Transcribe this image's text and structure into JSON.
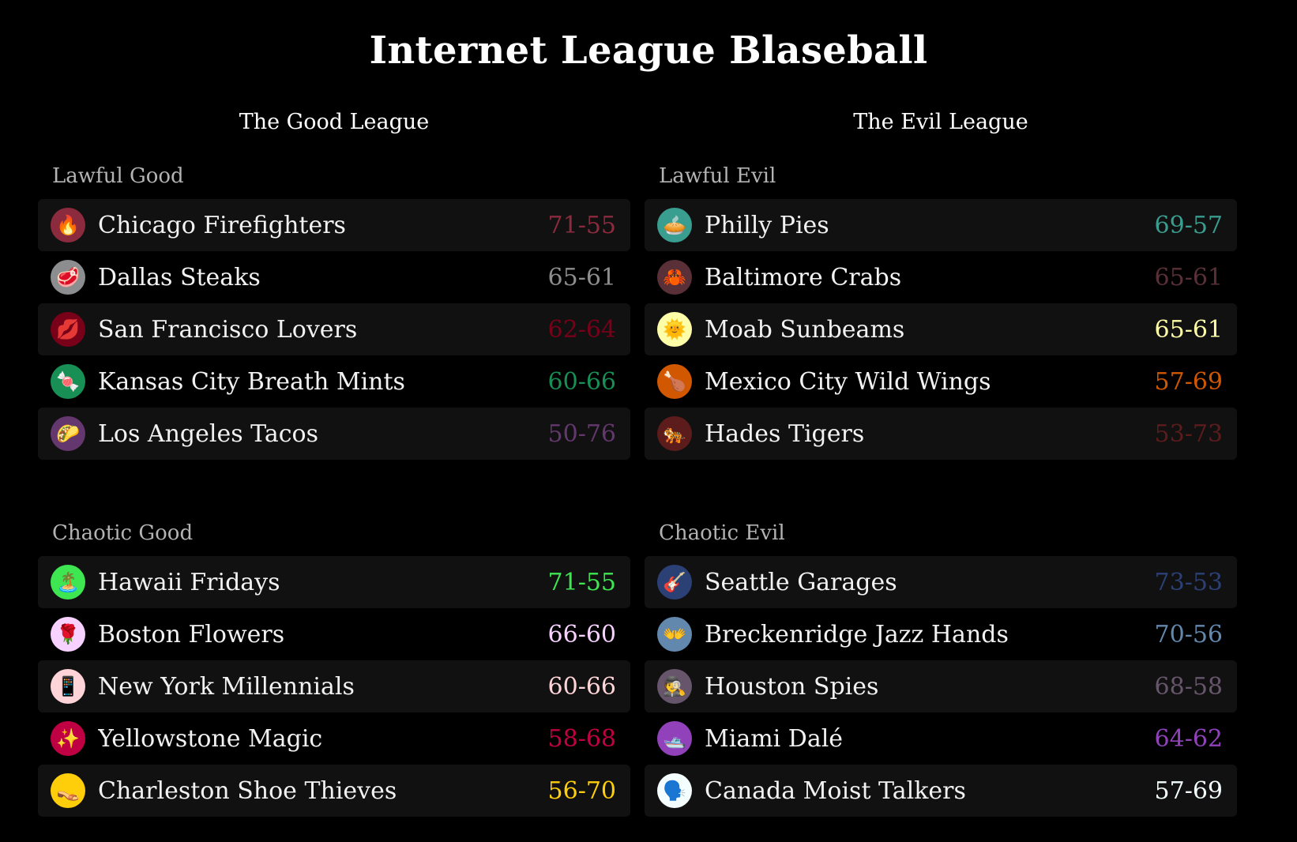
{
  "title": "Internet League Blaseball",
  "leagues": [
    {
      "name": "The Good League",
      "divisions": [
        {
          "name": "Lawful Good",
          "teams": [
            {
              "emoji": "🔥",
              "name": "Chicago Firefighters",
              "record": "71-55",
              "color": "#8c2a3e"
            },
            {
              "emoji": "🥩",
              "name": "Dallas Steaks",
              "record": "65-61",
              "color": "#8c8d8f"
            },
            {
              "emoji": "💋",
              "name": "San Francisco Lovers",
              "record": "62-64",
              "color": "#780018"
            },
            {
              "emoji": "🍬",
              "name": "Kansas City Breath Mints",
              "record": "60-66",
              "color": "#178f55"
            },
            {
              "emoji": "🌮",
              "name": "Los Angeles Tacos",
              "record": "50-76",
              "color": "#64376e"
            }
          ]
        },
        {
          "name": "Chaotic Good",
          "teams": [
            {
              "emoji": "🏝️",
              "name": "Hawaii Fridays",
              "record": "71-55",
              "color": "#3ee652"
            },
            {
              "emoji": "🌹",
              "name": "Boston Flowers",
              "record": "66-60",
              "color": "#f7d1ff"
            },
            {
              "emoji": "📱",
              "name": "New York Millennials",
              "record": "60-66",
              "color": "#ffd4d8"
            },
            {
              "emoji": "✨",
              "name": "Yellowstone Magic",
              "record": "58-68",
              "color": "#bf0043"
            },
            {
              "emoji": "👡",
              "name": "Charleston Shoe Thieves",
              "record": "56-70",
              "color": "#ffce0a"
            }
          ]
        }
      ]
    },
    {
      "name": "The Evil League",
      "divisions": [
        {
          "name": "Lawful Evil",
          "teams": [
            {
              "emoji": "🥧",
              "name": "Philly Pies",
              "record": "69-57",
              "color": "#399d8f"
            },
            {
              "emoji": "🦀",
              "name": "Baltimore Crabs",
              "record": "65-61",
              "color": "#593037"
            },
            {
              "emoji": "🌞",
              "name": "Moab Sunbeams",
              "record": "65-61",
              "color": "#fffea8"
            },
            {
              "emoji": "🍗",
              "name": "Mexico City Wild Wings",
              "record": "57-69",
              "color": "#d15700"
            },
            {
              "emoji": "🐅",
              "name": "Hades Tigers",
              "record": "53-73",
              "color": "#5c1c1c"
            }
          ]
        },
        {
          "name": "Chaotic Evil",
          "teams": [
            {
              "emoji": "🎸",
              "name": "Seattle Garages",
              "record": "73-53",
              "color": "#2b4075"
            },
            {
              "emoji": "👐",
              "name": "Breckenridge Jazz Hands",
              "record": "70-56",
              "color": "#6388ad"
            },
            {
              "emoji": "🕵️",
              "name": "Houston Spies",
              "record": "68-58",
              "color": "#67556b"
            },
            {
              "emoji": "🛥️",
              "name": "Miami Dalé",
              "record": "64-62",
              "color": "#9141ba"
            },
            {
              "emoji": "🗣️",
              "name": "Canada Moist Talkers",
              "record": "57-69",
              "color": "#f5feff"
            }
          ]
        }
      ]
    }
  ]
}
